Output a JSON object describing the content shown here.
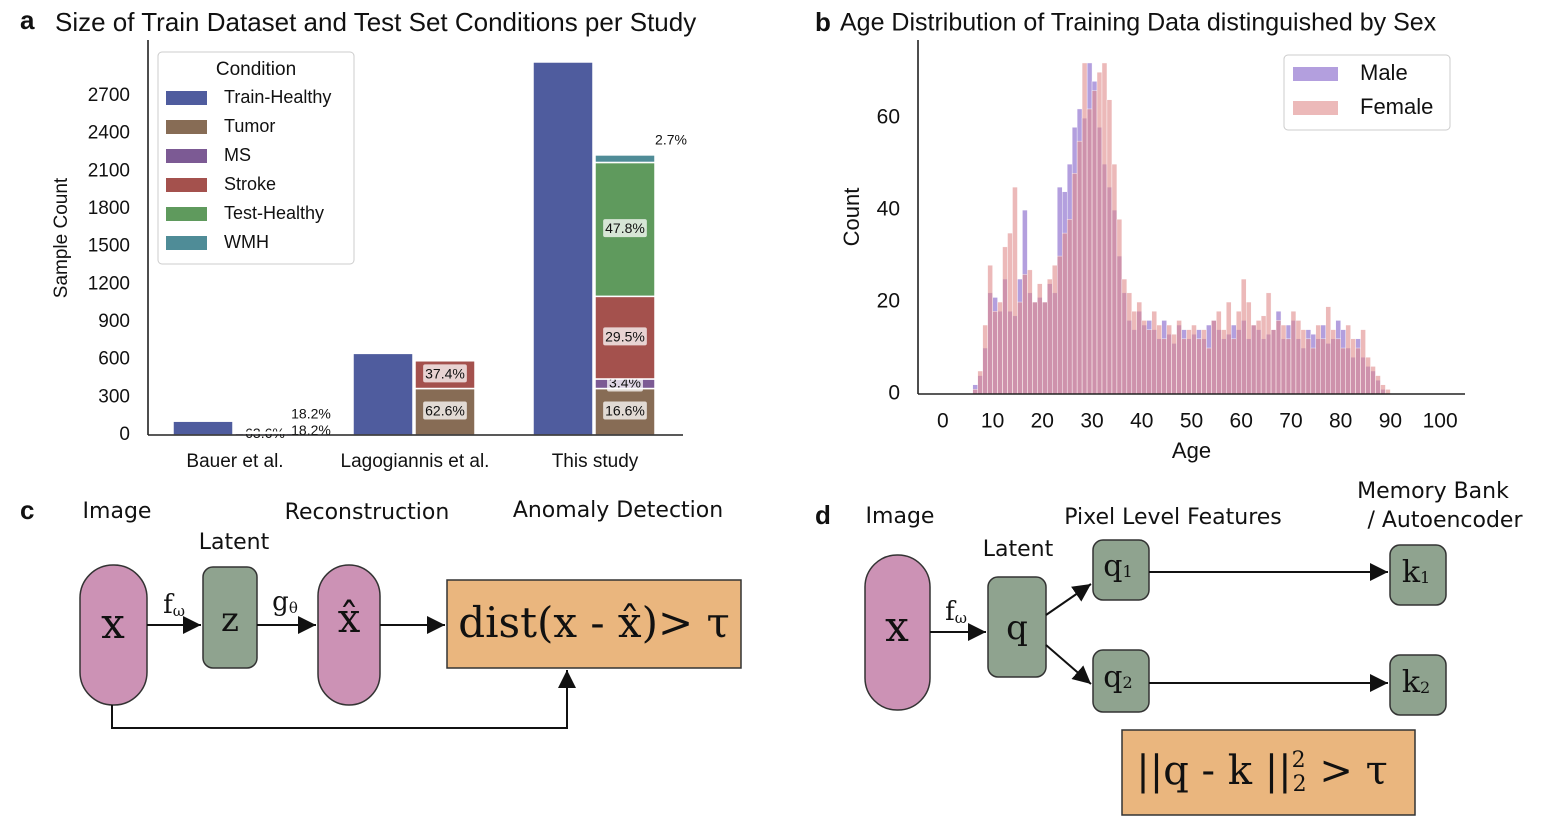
{
  "chart_data": [
    {
      "type": "bar",
      "panel_label": "a",
      "title": "Size of Train Dataset and Test Set Conditions per Study",
      "ylabel": "Sample Count",
      "categories": [
        "Bauer et al.",
        "Lagogiannis et al.",
        "This study"
      ],
      "legend_title": "Condition",
      "legend": "upper left",
      "ylim": [
        0,
        3145
      ],
      "yticks": [
        0,
        300,
        600,
        900,
        1200,
        1500,
        1800,
        2100,
        2400,
        2700
      ],
      "series": [
        {
          "name": "Train-Healthy",
          "color": "#4f5c9e",
          "values": [
            110,
            650,
            2970
          ]
        },
        {
          "name": "Tumor",
          "color": "#876c55",
          "values": [
            0,
            370,
            370
          ],
          "share_labels": [
            null,
            "62.6%",
            "16.6%"
          ]
        },
        {
          "name": "MS",
          "color": "#7c5a94",
          "values": [
            14,
            0,
            76
          ],
          "share_labels": [
            "63.6%",
            null,
            "3.4%"
          ]
        },
        {
          "name": "Stroke",
          "color": "#a4514d",
          "values": [
            0,
            221,
            658
          ],
          "share_labels": [
            null,
            "37.4%",
            "29.5%"
          ]
        },
        {
          "name": "Test-Healthy",
          "color": "#5f9a5d",
          "values": [
            4,
            0,
            1066
          ],
          "share_labels": [
            "18.2%",
            null,
            "47.8%"
          ]
        },
        {
          "name": "WMH",
          "color": "#4f8c97",
          "values": [
            4,
            0,
            60
          ],
          "share_labels": [
            "18.2%",
            null,
            "2.7%"
          ]
        }
      ]
    },
    {
      "type": "histogram",
      "panel_label": "b",
      "title": "Age Distribution of Training Data distinguished by Sex",
      "xlabel": "Age",
      "ylabel": "Count",
      "bins": [
        5,
        6,
        7,
        8,
        9,
        10,
        11,
        12,
        13,
        14,
        15,
        16,
        17,
        18,
        19,
        20,
        21,
        22,
        23,
        24,
        25,
        26,
        27,
        28,
        29,
        30,
        31,
        32,
        33,
        34,
        35,
        36,
        37,
        38,
        39,
        40,
        41,
        42,
        43,
        44,
        45,
        46,
        47,
        48,
        49,
        50,
        51,
        52,
        53,
        54,
        55,
        56,
        57,
        58,
        59,
        60,
        61,
        62,
        63,
        64,
        65,
        66,
        67,
        68,
        69,
        70,
        71,
        72,
        73,
        74,
        75,
        76,
        77,
        78,
        79,
        80,
        81,
        82,
        83,
        84,
        85,
        86,
        87,
        88,
        89,
        90
      ],
      "xlim": [
        -5,
        105
      ],
      "xticks": [
        0,
        10,
        20,
        30,
        40,
        50,
        60,
        70,
        80,
        90,
        100
      ],
      "ylim": [
        0,
        77
      ],
      "yticks": [
        0,
        20,
        40,
        60
      ],
      "legend": "upper right",
      "series": [
        {
          "name": "Male",
          "color": "#9a7fd3",
          "values": [
            0,
            2,
            4,
            10,
            22,
            21,
            18,
            25,
            18,
            17,
            25,
            40,
            22,
            20,
            21,
            20,
            24,
            22,
            45,
            44,
            50,
            58,
            62,
            60,
            72,
            68,
            58,
            50,
            45,
            40,
            30,
            22,
            16,
            14,
            18,
            15,
            16,
            14,
            12,
            16,
            13,
            11,
            15,
            14,
            12,
            13,
            14,
            12,
            15,
            16,
            14,
            12,
            13,
            15,
            14,
            16,
            12,
            15,
            14,
            12,
            13,
            14,
            18,
            12,
            15,
            16,
            12,
            10,
            14,
            13,
            12,
            15,
            11,
            12,
            16,
            14,
            10,
            8,
            12,
            8,
            6,
            5,
            3,
            1,
            0
          ]
        },
        {
          "name": "Female",
          "color": "#e08a8a",
          "values": [
            0,
            1,
            5,
            15,
            28,
            18,
            20,
            32,
            35,
            45,
            20,
            26,
            27,
            20,
            24,
            20,
            25,
            28,
            30,
            35,
            38,
            48,
            55,
            72,
            62,
            66,
            70,
            72,
            64,
            50,
            38,
            25,
            22,
            18,
            20,
            16,
            14,
            18,
            15,
            12,
            15,
            13,
            16,
            12,
            14,
            15,
            12,
            14,
            10,
            16,
            18,
            14,
            20,
            12,
            18,
            25,
            20,
            15,
            16,
            17,
            22,
            14,
            16,
            15,
            12,
            18,
            16,
            14,
            12,
            10,
            15,
            12,
            19,
            14,
            12,
            10,
            15,
            12,
            10,
            14,
            8,
            6,
            4,
            2,
            1
          ]
        }
      ]
    }
  ],
  "diagram_c": {
    "panel_label": "c",
    "image_label": "Image",
    "latent_label": "Latent",
    "reconstruction_label": "Reconstruction",
    "detection_label": "Anomaly Detection",
    "input": "x",
    "latent": "z",
    "output": "x̂",
    "encoder": {
      "base": "f",
      "sub": "ω"
    },
    "decoder": {
      "base": "g",
      "sub": "θ"
    },
    "criterion": "dist(x - x̂)> τ"
  },
  "diagram_d": {
    "panel_label": "d",
    "image_label": "Image",
    "latent_label": "Latent",
    "features_label": "Pixel Level Features",
    "memory_label": [
      "Memory Bank",
      "/ Autoencoder"
    ],
    "input": "x",
    "latent": "q",
    "encoder": {
      "base": "f",
      "sub": "ω"
    },
    "features": [
      {
        "base": "q",
        "sub": "1"
      },
      {
        "base": "q",
        "sub": "2"
      }
    ],
    "memory": [
      {
        "base": "k",
        "sub": "1"
      },
      {
        "base": "k",
        "sub": "2"
      }
    ],
    "criterion": {
      "left": "||q - k ||",
      "sup": "2",
      "sub": "2",
      "right": " > τ"
    }
  }
}
